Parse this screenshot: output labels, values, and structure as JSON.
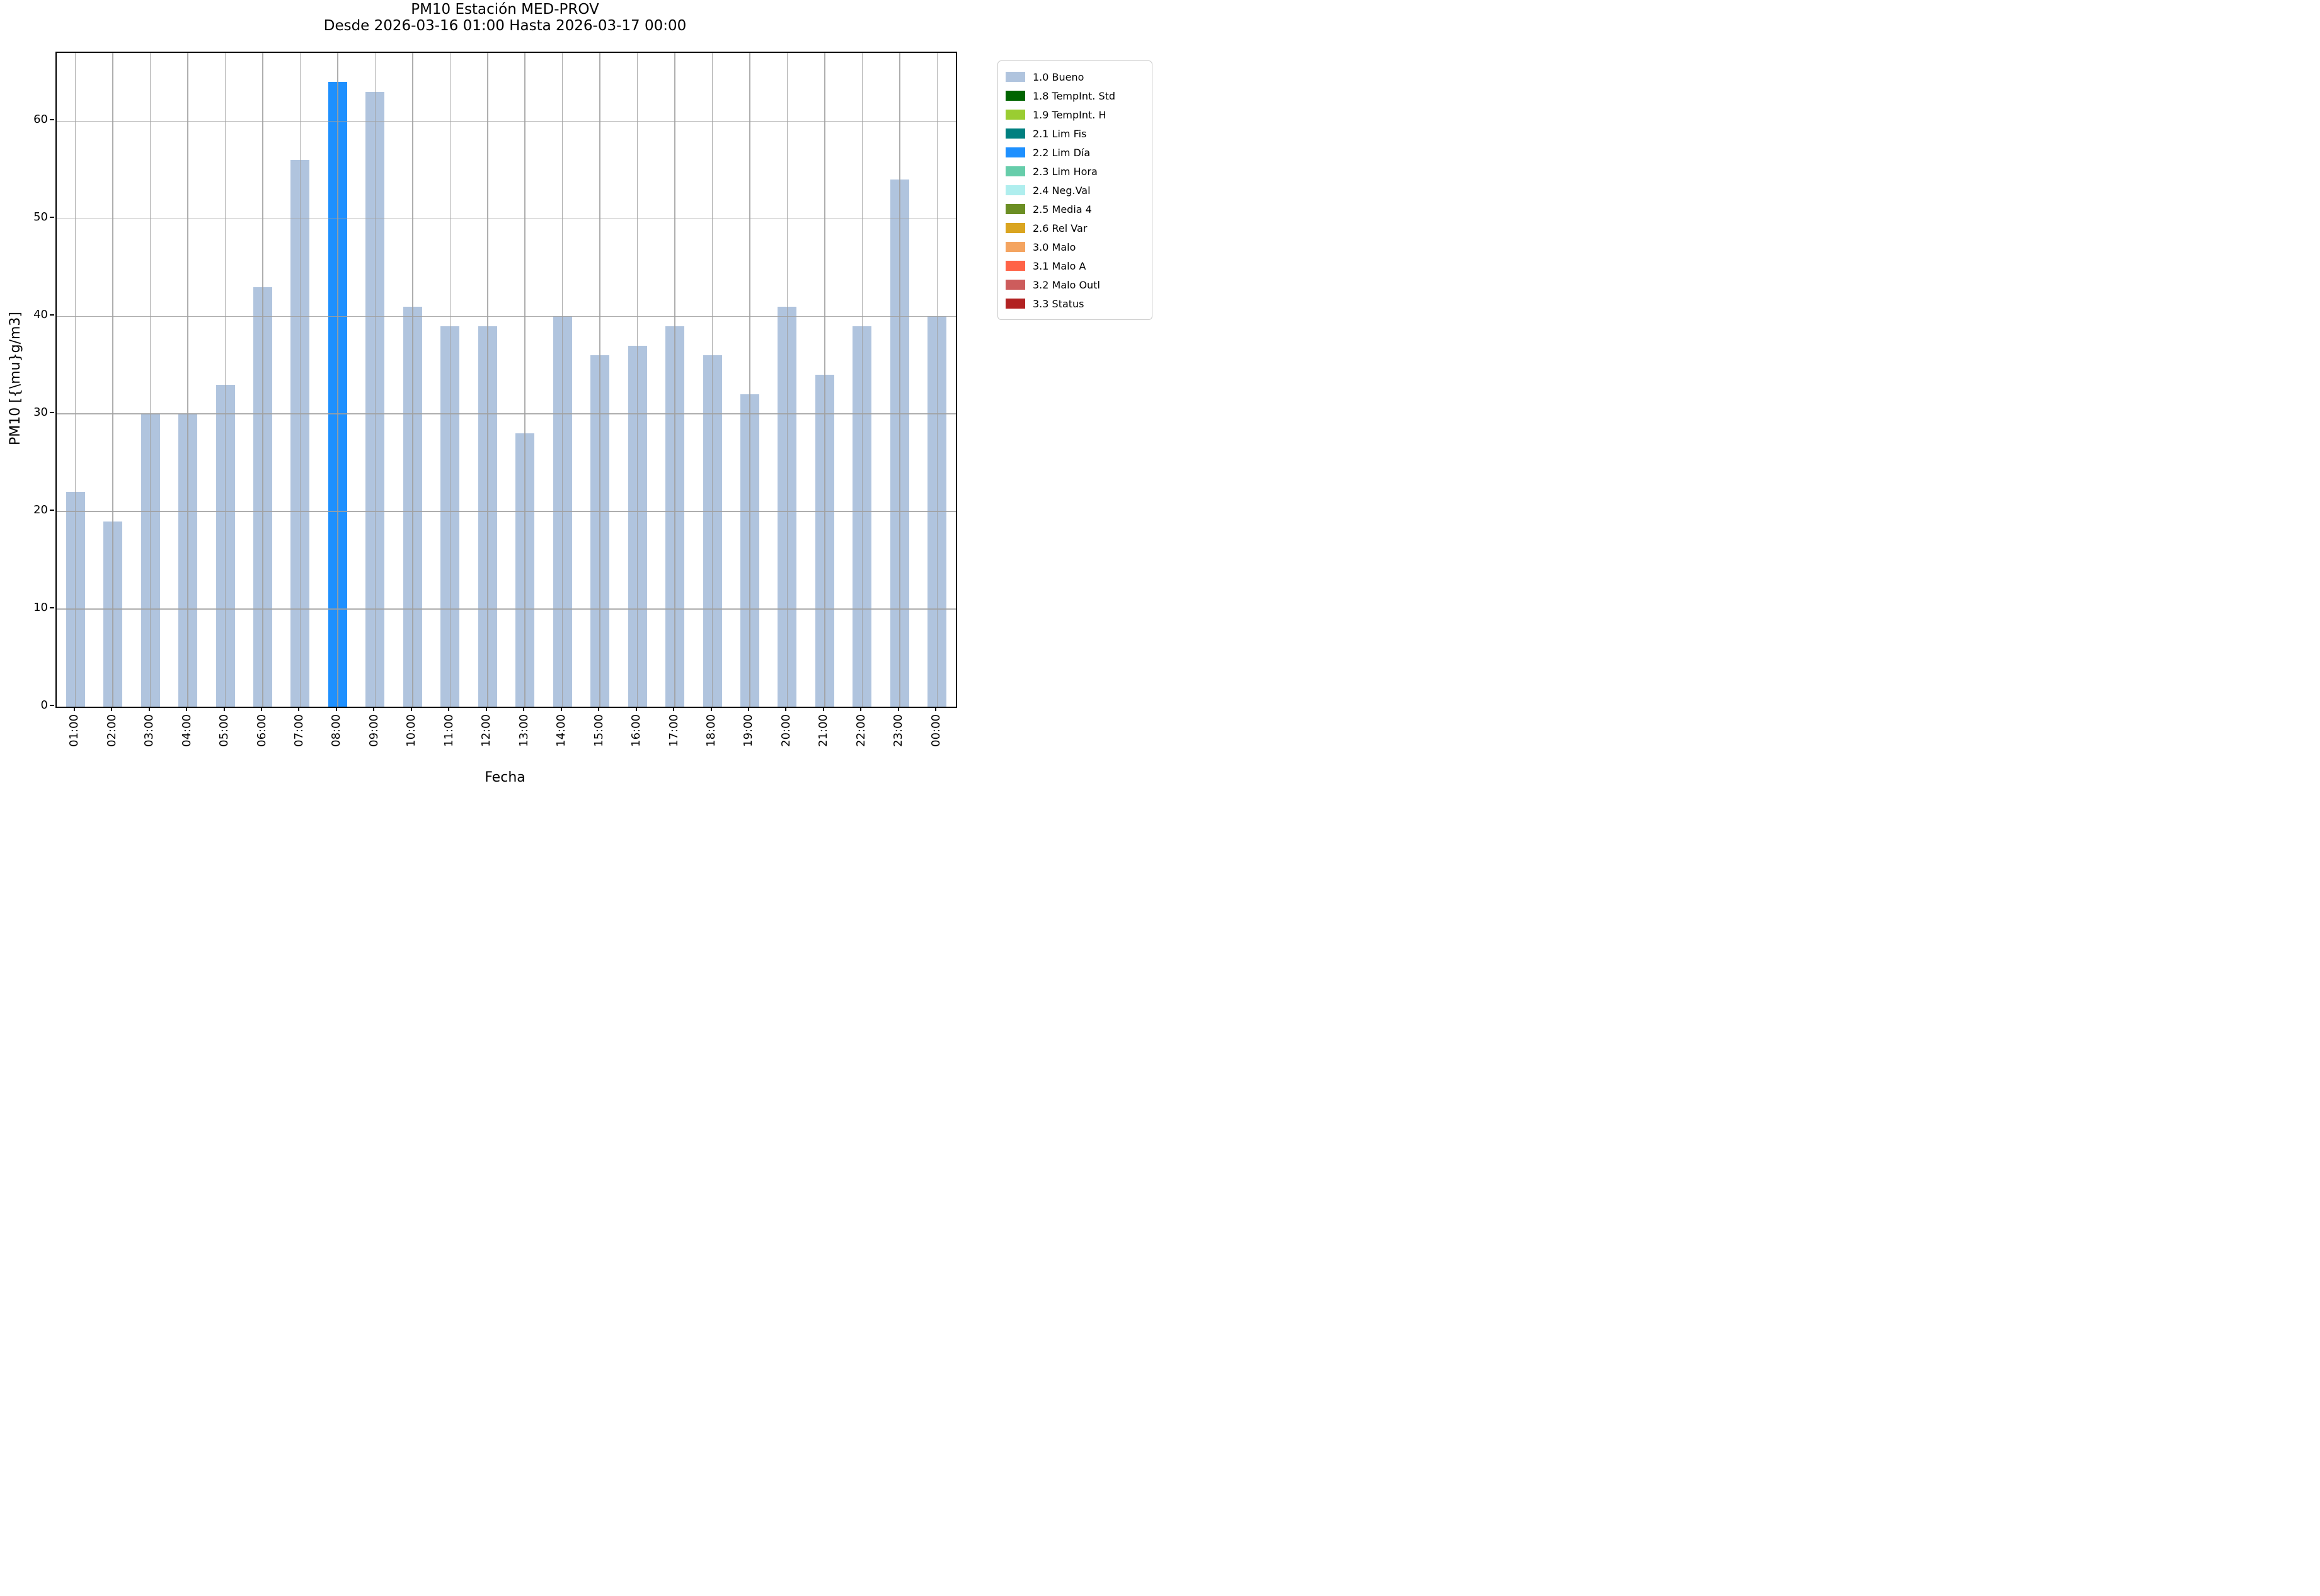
{
  "figure": {
    "title": "PM10 Estación MED-PROV",
    "subtitle": "Desde 2026-03-16 01:00 Hasta 2026-03-17 00:00"
  },
  "chart_data": {
    "type": "bar",
    "title": "PM10 Estación MED-PROV",
    "subtitle": "Desde 2026-03-16 01:00 Hasta 2026-03-17 00:00",
    "xlabel": "Fecha",
    "ylabel": "PM10 [{\\mu}g/m3]",
    "categories": [
      "01:00",
      "02:00",
      "03:00",
      "04:00",
      "05:00",
      "06:00",
      "07:00",
      "08:00",
      "09:00",
      "10:00",
      "11:00",
      "12:00",
      "13:00",
      "14:00",
      "15:00",
      "16:00",
      "17:00",
      "18:00",
      "19:00",
      "20:00",
      "21:00",
      "22:00",
      "23:00",
      "00:00"
    ],
    "values": [
      22,
      19,
      30,
      30,
      33,
      43,
      56,
      64,
      63,
      41,
      39,
      39,
      28,
      40,
      36,
      37,
      39,
      36,
      32,
      41,
      34,
      39,
      54,
      40
    ],
    "statuses": [
      "1.0",
      "1.0",
      "1.0",
      "1.0",
      "1.0",
      "1.0",
      "1.0",
      "2.2",
      "1.0",
      "1.0",
      "1.0",
      "1.0",
      "1.0",
      "1.0",
      "1.0",
      "1.0",
      "1.0",
      "1.0",
      "1.0",
      "1.0",
      "1.0",
      "1.0",
      "1.0",
      "1.0"
    ],
    "status_colors": {
      "1.0": "#b0c4de",
      "1.8": "#006400",
      "1.9": "#9acd32",
      "2.1": "#008080",
      "2.2": "#1e90ff",
      "2.3": "#66cdaa",
      "2.4": "#afeeee",
      "2.5": "#6b8e23",
      "2.6": "#daa520",
      "3.0": "#f4a460",
      "3.1": "#ff6347",
      "3.2": "#cd5c5c",
      "3.3": "#b22222"
    },
    "ylim": [
      0,
      67
    ],
    "yticks": [
      0,
      10,
      20,
      30,
      40,
      50,
      60
    ],
    "grid": "both, drawn above bars, color #b0b0b0",
    "legend_position": "outside upper right",
    "legend": [
      {
        "label": "1.0 Bueno",
        "color": "#b0c4de"
      },
      {
        "label": "1.8 TempInt. Std",
        "color": "#006400"
      },
      {
        "label": "1.9 TempInt. H",
        "color": "#9acd32"
      },
      {
        "label": "2.1 Lim Fis",
        "color": "#008080"
      },
      {
        "label": "2.2 Lim Día",
        "color": "#1e90ff"
      },
      {
        "label": "2.3 Lim Hora",
        "color": "#66cdaa"
      },
      {
        "label": "2.4 Neg.Val",
        "color": "#afeeee"
      },
      {
        "label": "2.5 Media 4",
        "color": "#6b8e23"
      },
      {
        "label": "2.6 Rel Var",
        "color": "#daa520"
      },
      {
        "label": "3.0 Malo",
        "color": "#f4a460"
      },
      {
        "label": "3.1 Malo A",
        "color": "#ff6347"
      },
      {
        "label": "3.2 Malo Outl",
        "color": "#cd5c5c"
      },
      {
        "label": "3.3 Status",
        "color": "#b22222"
      }
    ]
  }
}
